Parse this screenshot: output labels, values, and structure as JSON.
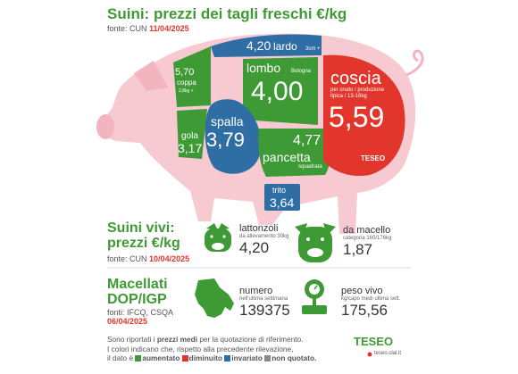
{
  "header": {
    "title": "Suini: prezzi dei tagli freschi €/kg",
    "source_prefix": "fonte: CUN",
    "source_date": "11/04/2025"
  },
  "cuts": {
    "lardo": {
      "value": "4,20",
      "name": "lardo",
      "note": "3cm +"
    },
    "coppa": {
      "value": "5,70",
      "name": "coppa",
      "note": "2,8kg +"
    },
    "lombo": {
      "name": "lombo",
      "note": "Bologna",
      "value": "4,00"
    },
    "coscia": {
      "name": "coscia",
      "note1": "per crudo / produzione",
      "note2": "tipica / 13-16kg",
      "value": "5,59"
    },
    "spalla": {
      "name": "spalla",
      "value": "3,79"
    },
    "gola": {
      "name": "gola",
      "value": "3,17"
    },
    "pancetta": {
      "value": "4,77",
      "name": "pancetta",
      "note": "squadrata"
    },
    "trito": {
      "name": "trito",
      "value": "3,64"
    },
    "brand": "TESEO"
  },
  "live": {
    "title_line1": "Suini vivi:",
    "title_line2": "prezzi €/kg",
    "source_prefix": "fonte: CUN",
    "source_date": "10/04/2025",
    "lattonzoli": {
      "name": "lattonzoli",
      "note": "da allevamento 30kg",
      "value": "4,20"
    },
    "macello": {
      "name": "da macello",
      "note": "categoria 160/176kg",
      "value": "1,87"
    }
  },
  "dop": {
    "title_line1": "Macellati",
    "title_line2": "DOP/IGP",
    "source": "fonti: IFCQ, CSQA",
    "date": "06/04/2025",
    "numero": {
      "name": "numero",
      "note": "nell'ultima settimana",
      "value": "139375"
    },
    "peso": {
      "name": "peso vivo",
      "note": "kg/capo medi ultima sett.",
      "value": "175,56"
    }
  },
  "footer": {
    "line1_a": "Sono riportati i",
    "line1_b": "prezzi medi",
    "line1_c": "per la quotazione di riferimento.",
    "line2": "I colori indicano che, rispetto alla precedente rilevazione,",
    "line3_a": "il dato è",
    "aumentato": "aumentato",
    "diminuito": "diminuito",
    "invariato": "invariato",
    "non_quotato": "non quotato.",
    "brand": "TESEO",
    "brand_url": "teseo.clal.it"
  },
  "colors": {
    "green": "#3e9a34",
    "red": "#e2362c",
    "blue": "#2f6ea4",
    "grey": "#8a8a8a",
    "pig_pink": "#f7c9d0"
  }
}
